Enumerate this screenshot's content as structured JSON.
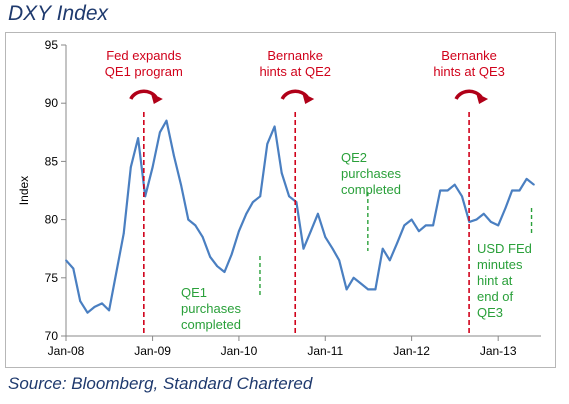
{
  "title": "DXY Index",
  "source": "Source: Bloomberg, Standard Chartered",
  "colors": {
    "series": "#4a7fc1",
    "event": "#d0021b",
    "milestone": "#2aa03a",
    "title": "#1f3a6e"
  },
  "chart_data": {
    "type": "line",
    "title": "DXY Index",
    "ylabel": "Index",
    "xlabel": "",
    "ylim": [
      70,
      95
    ],
    "yticks": [
      70,
      75,
      80,
      85,
      90,
      95
    ],
    "xlim": [
      "2008-01-01",
      "2013-07-01"
    ],
    "xticks": [
      {
        "date": "2008-01-01",
        "label": "Jan-08"
      },
      {
        "date": "2009-01-01",
        "label": "Jan-09"
      },
      {
        "date": "2010-01-01",
        "label": "Jan-10"
      },
      {
        "date": "2011-01-01",
        "label": "Jan-11"
      },
      {
        "date": "2012-01-01",
        "label": "Jan-12"
      },
      {
        "date": "2013-01-01",
        "label": "Jan-13"
      }
    ],
    "grid": false,
    "series": [
      {
        "x": [
          "2008-01-01",
          "2008-02-01",
          "2008-03-01",
          "2008-04-01",
          "2008-05-01",
          "2008-06-01",
          "2008-07-01",
          "2008-08-01",
          "2008-09-01",
          "2008-10-01",
          "2008-11-01",
          "2008-12-01",
          "2009-01-01",
          "2009-02-01",
          "2009-03-01",
          "2009-04-01",
          "2009-05-01",
          "2009-06-01",
          "2009-07-01",
          "2009-08-01",
          "2009-09-01",
          "2009-10-01",
          "2009-11-01",
          "2009-12-01",
          "2010-01-01",
          "2010-02-01",
          "2010-03-01",
          "2010-04-01",
          "2010-05-01",
          "2010-06-01",
          "2010-07-01",
          "2010-08-01",
          "2010-09-01",
          "2010-10-01",
          "2010-11-01",
          "2010-12-01",
          "2011-01-01",
          "2011-02-01",
          "2011-03-01",
          "2011-04-01",
          "2011-05-01",
          "2011-06-01",
          "2011-07-01",
          "2011-08-01",
          "2011-09-01",
          "2011-10-01",
          "2011-11-01",
          "2011-12-01",
          "2012-01-01",
          "2012-02-01",
          "2012-03-01",
          "2012-04-01",
          "2012-05-01",
          "2012-06-01",
          "2012-07-01",
          "2012-08-01",
          "2012-09-01",
          "2012-10-01",
          "2012-11-01",
          "2012-12-01",
          "2013-01-01",
          "2013-02-01",
          "2013-03-01",
          "2013-04-01",
          "2013-05-01",
          "2013-06-01"
        ],
        "values": [
          76.5,
          75.8,
          73.0,
          72.0,
          72.5,
          72.8,
          72.2,
          75.5,
          78.8,
          84.5,
          87.0,
          82.0,
          84.5,
          87.5,
          88.5,
          85.5,
          83.0,
          80.0,
          79.5,
          78.5,
          76.8,
          76.0,
          75.5,
          77.0,
          79.0,
          80.5,
          81.5,
          82.0,
          86.5,
          88.0,
          84.0,
          82.0,
          81.5,
          77.5,
          79.0,
          80.5,
          78.5,
          77.5,
          76.5,
          74.0,
          75.0,
          74.5,
          74.0,
          74.0,
          77.5,
          76.5,
          78.0,
          79.5,
          80.0,
          79.0,
          79.5,
          79.5,
          82.5,
          82.5,
          83.0,
          82.0,
          79.8,
          80.0,
          80.5,
          79.8,
          79.5,
          81.0,
          82.5,
          82.5,
          83.5,
          83.0
        ]
      }
    ],
    "events": [
      {
        "date": "2008-11-25",
        "label": [
          "Fed expands",
          "QE1 program"
        ]
      },
      {
        "date": "2010-08-27",
        "label": [
          "Bernanke",
          "hints at QE2"
        ]
      },
      {
        "date": "2012-08-31",
        "label": [
          "Bernanke",
          "hints at QE3"
        ]
      }
    ],
    "milestones": [
      {
        "date": "2010-03-31",
        "value": 76.5,
        "label": [
          "QE1",
          "purchases",
          "completed"
        ]
      },
      {
        "date": "2011-06-30",
        "value": 78.5,
        "label": [
          "QE2",
          "purchases",
          "completed"
        ]
      },
      {
        "date": "2013-05-22",
        "value": 81.5,
        "label": [
          "USD FEd",
          "minutes",
          "hint at",
          "end of",
          "QE3"
        ]
      }
    ]
  }
}
